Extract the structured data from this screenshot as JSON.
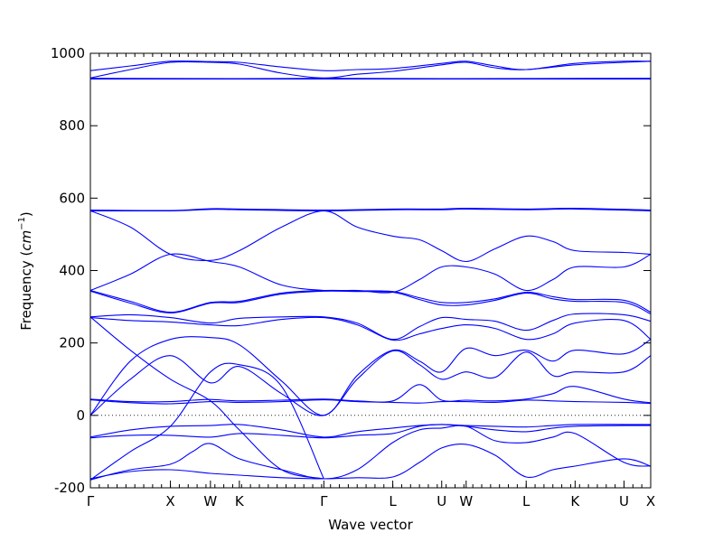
{
  "chart_data": {
    "type": "line",
    "title": "",
    "xlabel": "Wave vector",
    "ylabel_text": "Frequency (",
    "ylabel_unit": "cm",
    "ylabel_exp": "−1",
    "ylabel_close": ")",
    "ylim": [
      -200,
      1000
    ],
    "yticks": [
      -200,
      0,
      200,
      400,
      600,
      800,
      1000
    ],
    "xlim": [
      0,
      12.6
    ],
    "high_symmetry_points": [
      {
        "label": "Γ",
        "x": 0
      },
      {
        "label": "X",
        "x": 1.8
      },
      {
        "label": "W",
        "x": 2.7
      },
      {
        "label": "K",
        "x": 3.35
      },
      {
        "label": "Γ",
        "x": 5.25
      },
      {
        "label": "L",
        "x": 6.8
      },
      {
        "label": "U",
        "x": 7.9
      },
      {
        "label": "W",
        "x": 8.45
      },
      {
        "label": "L",
        "x": 9.8
      },
      {
        "label": "K",
        "x": 10.9
      },
      {
        "label": "U",
        "x": 12.0
      },
      {
        "label": "X",
        "x": 12.6
      }
    ],
    "zero_line": 0,
    "line_color": "#0000ff",
    "series": [
      {
        "x": [
          0,
          0.9,
          1.8,
          2.7,
          3.35,
          4.3,
          5.25,
          6.0,
          6.8,
          7.9,
          8.45,
          9.1,
          9.8,
          10.9,
          12.0,
          12.6
        ],
        "y": [
          952,
          965,
          978,
          977,
          975,
          962,
          952,
          955,
          958,
          972,
          978,
          965,
          955,
          972,
          978,
          978
        ]
      },
      {
        "x": [
          0,
          0.9,
          1.8,
          2.7,
          3.35,
          4.3,
          5.25,
          6.0,
          6.8,
          7.9,
          8.45,
          9.1,
          9.8,
          10.9,
          12.0,
          12.6
        ],
        "y": [
          932,
          955,
          975,
          975,
          970,
          945,
          932,
          942,
          950,
          968,
          975,
          960,
          955,
          968,
          975,
          978
        ]
      },
      {
        "x": [
          0,
          3.35,
          5.25,
          7.9,
          12.6
        ],
        "y": [
          931,
          930,
          931,
          930,
          931
        ]
      },
      {
        "x": [
          0,
          3.35,
          5.25,
          7.9,
          12.6
        ],
        "y": [
          929,
          929,
          929,
          929,
          929
        ]
      },
      {
        "x": [
          0,
          1.8,
          2.7,
          3.35,
          5.25,
          6.8,
          7.9,
          8.45,
          9.8,
          10.9,
          12.6
        ],
        "y": [
          567,
          566,
          571,
          570,
          567,
          570,
          570,
          572,
          570,
          572,
          567
        ]
      },
      {
        "x": [
          0,
          1.8,
          2.7,
          3.35,
          5.25,
          6.8,
          7.9,
          8.45,
          9.8,
          10.9,
          12.6
        ],
        "y": [
          565,
          565,
          569,
          568,
          565,
          568,
          568,
          570,
          568,
          570,
          565
        ]
      },
      {
        "x": [
          0,
          0.9,
          1.8,
          2.7,
          3.35,
          4.3,
          5.25,
          6.0,
          6.8,
          7.4,
          7.9,
          8.45,
          9.1,
          9.8,
          10.4,
          10.9,
          12.0,
          12.6
        ],
        "y": [
          565,
          520,
          445,
          428,
          455,
          520,
          565,
          520,
          495,
          485,
          455,
          425,
          460,
          495,
          480,
          455,
          450,
          445
        ]
      },
      {
        "x": [
          0,
          0.9,
          1.8,
          2.7,
          3.35,
          4.3,
          5.25,
          6.0,
          6.8,
          7.4,
          7.9,
          8.45,
          9.1,
          9.8,
          10.4,
          10.9,
          12.0,
          12.6
        ],
        "y": [
          345,
          390,
          445,
          425,
          410,
          360,
          345,
          345,
          340,
          375,
          410,
          410,
          390,
          345,
          375,
          410,
          410,
          445
        ]
      },
      {
        "x": [
          0,
          0.9,
          1.8,
          2.7,
          3.35,
          4.3,
          5.25,
          6.0,
          6.8,
          7.4,
          7.9,
          8.45,
          9.1,
          9.8,
          10.4,
          10.9,
          12.0,
          12.6
        ],
        "y": [
          345,
          315,
          285,
          312,
          315,
          338,
          345,
          344,
          342,
          325,
          312,
          312,
          322,
          340,
          328,
          320,
          318,
          285
        ]
      },
      {
        "x": [
          0,
          0.9,
          1.8,
          2.7,
          3.35,
          4.3,
          5.25,
          6.0,
          6.8,
          7.4,
          7.9,
          8.45,
          9.1,
          9.8,
          10.4,
          10.9,
          12.0,
          12.6
        ],
        "y": [
          343,
          310,
          283,
          310,
          312,
          335,
          343,
          342,
          340,
          320,
          305,
          305,
          318,
          338,
          322,
          315,
          312,
          280
        ]
      },
      {
        "x": [
          0,
          0.9,
          1.8,
          2.7,
          3.35,
          4.3,
          5.25,
          6.0,
          6.8,
          7.4,
          7.9,
          8.45,
          9.1,
          9.8,
          10.4,
          10.9,
          12.0,
          12.6
        ],
        "y": [
          272,
          278,
          270,
          255,
          268,
          272,
          272,
          255,
          210,
          245,
          270,
          265,
          260,
          235,
          262,
          280,
          278,
          260
        ]
      },
      {
        "x": [
          0,
          0.9,
          1.8,
          2.7,
          3.35,
          4.3,
          5.25,
          6.0,
          6.8,
          7.4,
          7.9,
          8.45,
          9.1,
          9.8,
          10.4,
          10.9,
          12.0,
          12.6
        ],
        "y": [
          270,
          262,
          258,
          250,
          248,
          265,
          270,
          250,
          208,
          225,
          240,
          250,
          240,
          210,
          225,
          255,
          262,
          210
        ]
      },
      {
        "x": [
          0,
          0.9,
          1.8,
          2.7,
          3.35,
          4.3,
          5.25,
          6.0,
          6.8,
          7.4,
          7.9,
          8.45,
          9.1,
          9.8,
          10.4,
          10.9,
          12.0,
          12.6
        ],
        "y": [
          0,
          150,
          210,
          215,
          195,
          95,
          0,
          110,
          180,
          150,
          120,
          185,
          165,
          180,
          150,
          180,
          170,
          210
        ]
      },
      {
        "x": [
          0,
          0.9,
          1.8,
          2.7,
          3.35,
          4.3,
          5.25,
          6.0,
          6.8,
          7.4,
          7.9,
          8.45,
          9.1,
          9.8,
          10.4,
          10.9,
          12.0,
          12.6
        ],
        "y": [
          0,
          100,
          165,
          90,
          135,
          60,
          0,
          100,
          178,
          140,
          100,
          120,
          105,
          175,
          110,
          120,
          120,
          165
        ]
      },
      {
        "x": [
          0,
          0.9,
          1.8,
          2.3,
          2.7,
          3.35,
          4.3,
          5.25,
          6.0,
          6.8,
          7.4,
          7.9,
          8.45,
          9.1,
          9.8,
          10.4,
          10.9,
          12.0,
          12.6
        ],
        "y": [
          45,
          38,
          38,
          42,
          44,
          40,
          42,
          45,
          40,
          40,
          85,
          42,
          42,
          40,
          45,
          60,
          80,
          45,
          35
        ]
      },
      {
        "x": [
          0,
          0.9,
          1.8,
          2.7,
          3.35,
          4.3,
          5.25,
          6.0,
          6.8,
          7.4,
          7.9,
          8.45,
          9.1,
          9.8,
          10.4,
          10.9,
          12.0,
          12.6
        ],
        "y": [
          43,
          35,
          32,
          38,
          36,
          38,
          43,
          38,
          36,
          34,
          38,
          38,
          36,
          42,
          40,
          38,
          36,
          33
        ]
      },
      {
        "x": [
          0,
          0.9,
          1.8,
          2.7,
          3.35,
          4.3,
          5.25,
          6.0,
          6.8,
          7.4,
          7.9,
          8.45,
          9.1,
          9.8,
          10.4,
          10.9,
          12.0,
          12.6
        ],
        "y": [
          -60,
          -40,
          -30,
          -28,
          -25,
          -40,
          -60,
          -45,
          -35,
          -28,
          -25,
          -28,
          -30,
          -32,
          -28,
          -25,
          -25,
          -25
        ]
      },
      {
        "x": [
          0,
          0.9,
          1.8,
          2.7,
          3.35,
          4.3,
          5.25,
          6.0,
          6.8,
          7.4,
          7.9,
          8.45,
          9.1,
          9.8,
          10.4,
          10.9,
          12.0,
          12.6
        ],
        "y": [
          -62,
          -55,
          -55,
          -60,
          -50,
          -55,
          -62,
          -55,
          -50,
          -30,
          -25,
          -30,
          -40,
          -45,
          -35,
          -30,
          -28,
          -28
        ]
      },
      {
        "x": [
          0,
          0.9,
          1.8,
          2.3,
          2.7,
          3.35,
          4.3,
          5.25,
          6.0,
          6.8,
          7.4,
          7.9,
          8.45,
          9.1,
          9.8,
          10.4,
          10.9,
          12.0,
          12.6
        ],
        "y": [
          -178,
          -150,
          -135,
          -100,
          -78,
          -120,
          -150,
          -175,
          -150,
          -75,
          -40,
          -35,
          -30,
          -70,
          -75,
          -60,
          -50,
          -130,
          -140
        ]
      },
      {
        "x": [
          0,
          0.9,
          1.8,
          2.7,
          3.35,
          4.3,
          5.25,
          6.0,
          6.8,
          7.4,
          7.9,
          8.45,
          9.1,
          9.8,
          10.4,
          10.9,
          12.0,
          12.6
        ],
        "y": [
          -175,
          -155,
          -150,
          -160,
          -165,
          -172,
          -175,
          -172,
          -170,
          -130,
          -90,
          -80,
          -110,
          -170,
          -150,
          -140,
          -120,
          -140
        ]
      },
      {
        "x": [
          0,
          0.9,
          1.8,
          2.7,
          3.35,
          4.3,
          5.25
        ],
        "y": [
          -178,
          -100,
          -30,
          120,
          140,
          80,
          -175
        ]
      },
      {
        "x": [
          0,
          0.9,
          1.8,
          2.7,
          3.35,
          4.3,
          5.25
        ],
        "y": [
          272,
          180,
          100,
          40,
          -40,
          -150,
          -175
        ]
      }
    ]
  }
}
